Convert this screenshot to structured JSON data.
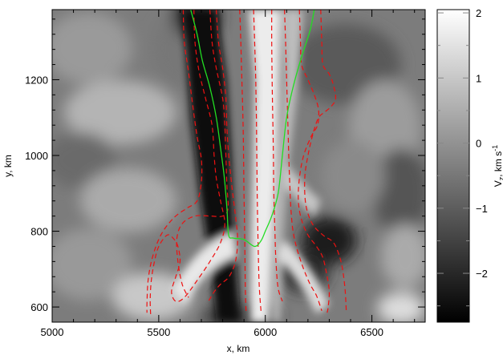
{
  "chart_data": {
    "type": "heatmap",
    "title": "",
    "xlabel": "x, km",
    "ylabel": "y, km",
    "xlim": [
      5000,
      6750
    ],
    "ylim": [
      560,
      1385
    ],
    "x_ticks": [
      5000,
      5500,
      6000,
      6500
    ],
    "x_tick_labels": [
      "5000",
      "5500",
      "6000",
      "6500"
    ],
    "y_ticks": [
      600,
      800,
      1000,
      1200
    ],
    "y_tick_labels": [
      "600",
      "800",
      "1000",
      "1200"
    ],
    "colorbar": {
      "label_main": "V",
      "label_sub": "z",
      "label_units": ", km s",
      "label_exp": "-1",
      "range": [
        -2.75,
        2.05
      ],
      "ticks": [
        -2,
        -1,
        0,
        1,
        2
      ],
      "tick_labels": [
        "−2",
        "−1",
        "0",
        "1",
        "2"
      ],
      "colormap": "grayscale (black = negative, white = positive)"
    },
    "contours": {
      "green_solid": {
        "color": "#22dd22",
        "points": [
          [
            5650,
            1385
          ],
          [
            5680,
            1320
          ],
          [
            5705,
            1250
          ],
          [
            5740,
            1180
          ],
          [
            5770,
            1100
          ],
          [
            5790,
            1020
          ],
          [
            5808,
            940
          ],
          [
            5820,
            860
          ],
          [
            5828,
            790
          ],
          [
            5850,
            782
          ],
          [
            5900,
            778
          ],
          [
            5950,
            760
          ],
          [
            5980,
            775
          ],
          [
            6000,
            800
          ],
          [
            6030,
            840
          ],
          [
            6060,
            900
          ],
          [
            6080,
            1000
          ],
          [
            6100,
            1100
          ],
          [
            6130,
            1180
          ],
          [
            6170,
            1260
          ],
          [
            6210,
            1330
          ],
          [
            6230,
            1385
          ]
        ]
      },
      "red_dashed": {
        "color": "#ee1111",
        "lines": [
          [
            [
              5615,
              1385
            ],
            [
              5620,
              1300
            ],
            [
              5640,
              1220
            ],
            [
              5660,
              1130
            ],
            [
              5680,
              1050
            ],
            [
              5700,
              990
            ],
            [
              5700,
              930
            ],
            [
              5680,
              880
            ],
            [
              5630,
              860
            ],
            [
              5570,
              835
            ],
            [
              5510,
              790
            ],
            [
              5470,
              730
            ],
            [
              5450,
              670
            ],
            [
              5445,
              610
            ],
            [
              5445,
              585
            ]
          ],
          [
            [
              5665,
              1385
            ],
            [
              5670,
              1300
            ],
            [
              5690,
              1220
            ],
            [
              5720,
              1150
            ],
            [
              5750,
              1080
            ],
            [
              5760,
              1000
            ],
            [
              5770,
              940
            ],
            [
              5790,
              880
            ],
            [
              5810,
              820
            ],
            [
              5790,
              770
            ],
            [
              5740,
              720
            ],
            [
              5680,
              670
            ],
            [
              5620,
              625
            ],
            [
              5580,
              615
            ],
            [
              5560,
              640
            ],
            [
              5580,
              680
            ],
            [
              5600,
              720
            ],
            [
              5590,
              760
            ],
            [
              5570,
              780
            ],
            [
              5540,
              790
            ],
            [
              5500,
              760
            ],
            [
              5480,
              720
            ],
            [
              5465,
              670
            ],
            [
              5460,
              620
            ],
            [
              5462,
              578
            ]
          ],
          [
            [
              5740,
              1385
            ],
            [
              5750,
              1300
            ],
            [
              5770,
              1230
            ],
            [
              5800,
              1150
            ],
            [
              5810,
              1080
            ],
            [
              5815,
              1000
            ],
            [
              5820,
              920
            ],
            [
              5825,
              860
            ],
            [
              5800,
              840
            ],
            [
              5740,
              840
            ],
            [
              5670,
              840
            ],
            [
              5610,
              820
            ],
            [
              5585,
              780
            ],
            [
              5590,
              720
            ],
            [
              5610,
              660
            ],
            [
              5640,
              625
            ]
          ],
          [
            [
              5770,
              1385
            ],
            [
              5780,
              1300
            ],
            [
              5800,
              1230
            ],
            [
              5815,
              1150
            ],
            [
              5820,
              1070
            ],
            [
              5830,
              990
            ],
            [
              5845,
              910
            ],
            [
              5860,
              840
            ],
            [
              5870,
              780
            ],
            [
              5860,
              720
            ],
            [
              5830,
              680
            ],
            [
              5790,
              660
            ],
            [
              5760,
              640
            ],
            [
              5730,
              612
            ]
          ],
          [
            [
              5880,
              1385
            ],
            [
              5885,
              1300
            ],
            [
              5890,
              1200
            ],
            [
              5895,
              1100
            ],
            [
              5898,
              1000
            ],
            [
              5900,
              900
            ],
            [
              5903,
              800
            ],
            [
              5905,
              700
            ],
            [
              5907,
              630
            ],
            [
              5910,
              585
            ]
          ],
          [
            [
              5945,
              1385
            ],
            [
              5950,
              1300
            ],
            [
              5955,
              1200
            ],
            [
              5958,
              1100
            ],
            [
              5960,
              1000
            ],
            [
              5962,
              900
            ],
            [
              5965,
              800
            ],
            [
              5968,
              720
            ],
            [
              5972,
              650
            ],
            [
              5980,
              588
            ]
          ],
          [
            [
              6030,
              1385
            ],
            [
              6030,
              1300
            ],
            [
              6032,
              1200
            ],
            [
              6035,
              1100
            ],
            [
              6038,
              1000
            ],
            [
              6040,
              900
            ],
            [
              6045,
              800
            ],
            [
              6050,
              720
            ],
            [
              6060,
              650
            ],
            [
              6080,
              615
            ]
          ],
          [
            [
              6090,
              1385
            ],
            [
              6095,
              1300
            ],
            [
              6100,
              1200
            ],
            [
              6105,
              1100
            ],
            [
              6110,
              1000
            ],
            [
              6115,
              920
            ],
            [
              6120,
              860
            ],
            [
              6130,
              800
            ],
            [
              6150,
              750
            ],
            [
              6180,
              700
            ],
            [
              6210,
              660
            ],
            [
              6240,
              630
            ],
            [
              6265,
              590
            ]
          ],
          [
            [
              6160,
              1385
            ],
            [
              6165,
              1300
            ],
            [
              6170,
              1240
            ],
            [
              6200,
              1200
            ],
            [
              6230,
              1160
            ],
            [
              6250,
              1120
            ],
            [
              6245,
              1080
            ],
            [
              6215,
              1050
            ],
            [
              6180,
              1000
            ],
            [
              6160,
              940
            ],
            [
              6155,
              880
            ],
            [
              6170,
              830
            ],
            [
              6200,
              790
            ],
            [
              6240,
              760
            ],
            [
              6270,
              730
            ],
            [
              6290,
              680
            ],
            [
              6300,
              640
            ],
            [
              6295,
              600
            ],
            [
              6290,
              585
            ]
          ],
          [
            [
              6260,
              1385
            ],
            [
              6265,
              1300
            ],
            [
              6270,
              1240
            ],
            [
              6300,
              1215
            ],
            [
              6320,
              1185
            ],
            [
              6330,
              1150
            ],
            [
              6310,
              1130
            ],
            [
              6280,
              1115
            ],
            [
              6250,
              1100
            ],
            [
              6225,
              1060
            ],
            [
              6200,
              1000
            ],
            [
              6185,
              940
            ],
            [
              6190,
              870
            ],
            [
              6220,
              820
            ],
            [
              6270,
              790
            ],
            [
              6320,
              770
            ],
            [
              6350,
              730
            ],
            [
              6365,
              690
            ],
            [
              6375,
              640
            ],
            [
              6380,
              585
            ]
          ]
        ]
      }
    }
  }
}
